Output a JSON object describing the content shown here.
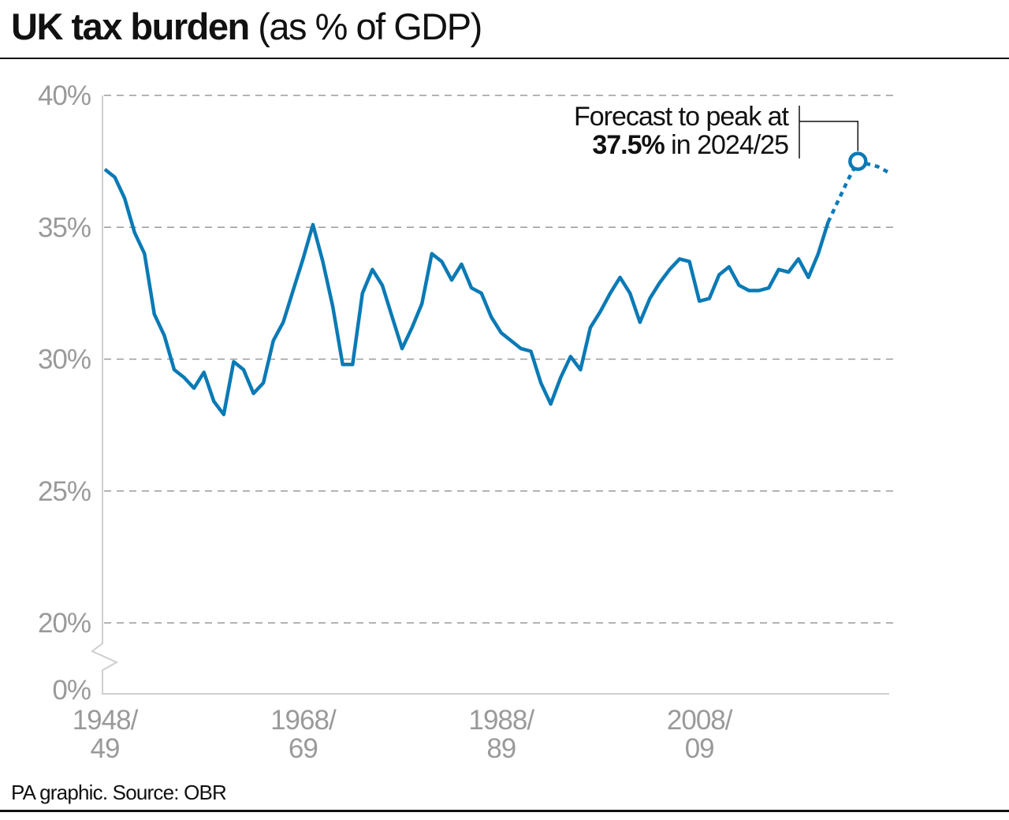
{
  "title": {
    "bold": "UK tax burden",
    "normal": "(as % of GDP)"
  },
  "source": "PA graphic. Source: OBR",
  "chart_data": {
    "type": "line",
    "title": "UK tax burden (as % of GDP)",
    "xlabel": "",
    "ylabel": "",
    "y_ticks": [
      "0%",
      "20%",
      "25%",
      "30%",
      "35%",
      "40%"
    ],
    "y_tick_values": [
      0,
      20,
      25,
      30,
      35,
      40
    ],
    "ylim": [
      20,
      40
    ],
    "y_axis_break": true,
    "x_ticks": [
      {
        "line1": "1948/",
        "line2": "49",
        "year": 1948
      },
      {
        "line1": "1968/",
        "line2": "69",
        "year": 1968
      },
      {
        "line1": "1988/",
        "line2": "89",
        "year": 1988
      },
      {
        "line1": "2008/",
        "line2": "09",
        "year": 2008
      }
    ],
    "xlim": [
      1948,
      2027
    ],
    "grid": true,
    "color": "#0a7ab5",
    "series": [
      {
        "style": "solid",
        "x": [
          1948,
          1949,
          1950,
          1951,
          1952,
          1953,
          1954,
          1955,
          1956,
          1957,
          1958,
          1959,
          1960,
          1961,
          1962,
          1963,
          1964,
          1965,
          1966,
          1967,
          1968,
          1969,
          1970,
          1971,
          1972,
          1973,
          1974,
          1975,
          1976,
          1977,
          1978,
          1979,
          1980,
          1981,
          1982,
          1983,
          1984,
          1985,
          1986,
          1987,
          1988,
          1989,
          1990,
          1991,
          1992,
          1993,
          1994,
          1995,
          1996,
          1997,
          1998,
          1999,
          2000,
          2001,
          2002,
          2003,
          2004,
          2005,
          2006,
          2007,
          2008,
          2009,
          2010,
          2011,
          2012,
          2013,
          2014,
          2015,
          2016,
          2017,
          2018,
          2019,
          2020,
          2021
        ],
        "y": [
          37.2,
          36.9,
          36.1,
          34.8,
          34.0,
          31.7,
          30.9,
          29.6,
          29.3,
          28.9,
          29.5,
          28.4,
          27.9,
          29.9,
          29.6,
          28.7,
          29.1,
          30.7,
          31.4,
          32.6,
          33.8,
          35.1,
          33.7,
          32.0,
          29.8,
          29.8,
          32.5,
          33.4,
          32.8,
          31.6,
          30.4,
          31.2,
          32.1,
          34.0,
          33.7,
          33.0,
          33.6,
          32.7,
          32.5,
          31.6,
          31.0,
          30.7,
          30.4,
          30.3,
          29.1,
          28.3,
          29.3,
          30.1,
          29.6,
          31.2,
          31.8,
          32.5,
          33.1,
          32.5,
          31.4,
          32.3,
          32.9,
          33.4,
          33.8,
          33.7,
          32.2,
          32.3,
          33.2,
          33.5,
          32.8,
          32.6,
          32.6,
          32.7,
          33.4,
          33.3,
          33.8,
          33.1,
          34.0,
          35.2
        ]
      },
      {
        "style": "dotted",
        "x": [
          2021,
          2022,
          2023,
          2024,
          2025,
          2026,
          2027
        ],
        "y": [
          35.2,
          36.0,
          36.8,
          37.5,
          37.4,
          37.3,
          37.1
        ]
      }
    ],
    "annotation": {
      "line1": "Forecast to peak at",
      "bold": "37.5%",
      "rest": " in 2024/25",
      "year": 2024,
      "value": 37.5
    }
  }
}
